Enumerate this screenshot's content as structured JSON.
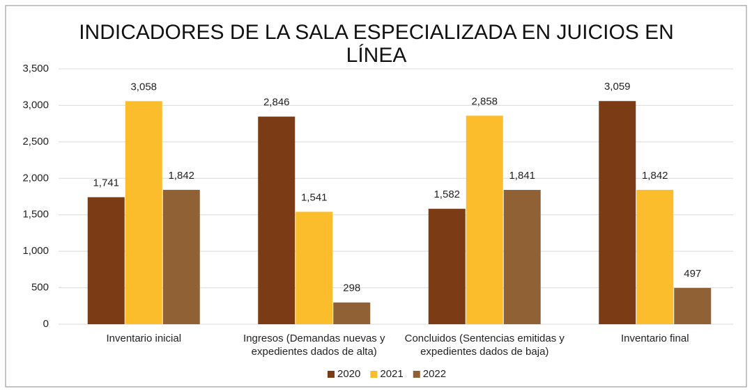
{
  "chart_data": {
    "type": "bar",
    "title": "INDICADORES DE LA SALA ESPECIALIZADA EN JUICIOS EN LÍNEA",
    "categories": [
      "Inventario inicial",
      "Ingresos (Demandas nuevas y expedientes dados de alta)",
      "Concluidos (Sentencias emitidas y expedientes dados de baja)",
      "Inventario final"
    ],
    "series": [
      {
        "name": "2020",
        "color": "#7b3b14",
        "values": [
          1741,
          2846,
          1582,
          3059
        ],
        "value_labels": [
          "1,741",
          "2,846",
          "1,582",
          "3,059"
        ]
      },
      {
        "name": "2021",
        "color": "#fbbd2c",
        "values": [
          3058,
          1541,
          2858,
          1842
        ],
        "value_labels": [
          "3,058",
          "1,541",
          "2,858",
          "1,842"
        ]
      },
      {
        "name": "2022",
        "color": "#8f6135",
        "values": [
          1842,
          298,
          1841,
          497
        ],
        "value_labels": [
          "1,842",
          "298",
          "1,841",
          "497"
        ]
      }
    ],
    "ylim": [
      0,
      3500
    ],
    "yticks": [
      0,
      500,
      {
        "value": 1000,
        "label": "1,000"
      },
      {
        "value": 1500,
        "label": "1,500"
      },
      {
        "value": 2000,
        "label": "2,000"
      },
      {
        "value": 2500,
        "label": "2,500"
      },
      {
        "value": 3000,
        "label": "3,000"
      },
      {
        "value": 3500,
        "label": "3,500"
      }
    ],
    "grid": true,
    "legend": "bottom"
  }
}
